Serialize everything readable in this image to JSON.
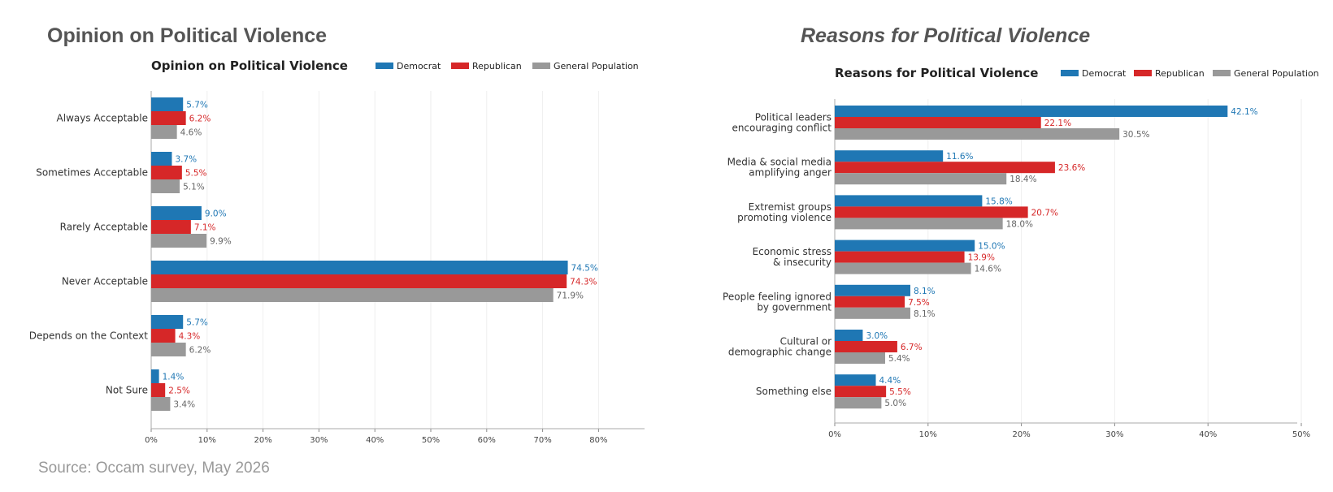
{
  "page": {
    "left_heading": "Opinion on Political Violence",
    "right_heading": "Reasons for Political Violence",
    "source": "Source: Occam survey, May 2026"
  },
  "colors": {
    "democrat": "#1f77b4",
    "republican": "#d62728",
    "general": "#999999"
  },
  "chart_data": [
    {
      "type": "bar",
      "orientation": "horizontal",
      "title": "Opinion on Political Violence",
      "categories": [
        "Always Acceptable",
        "Sometimes Acceptable",
        "Rarely Acceptable",
        "Never Acceptable",
        "Depends on the Context",
        "Not Sure"
      ],
      "series": [
        {
          "name": "Democrat",
          "color": "#1f77b4",
          "values": [
            5.7,
            3.7,
            9.0,
            74.5,
            5.7,
            1.4
          ]
        },
        {
          "name": "Republican",
          "color": "#d62728",
          "values": [
            6.2,
            5.5,
            7.1,
            74.3,
            4.3,
            2.5
          ]
        },
        {
          "name": "General Population",
          "color": "#999999",
          "values": [
            4.6,
            5.1,
            9.9,
            71.9,
            6.2,
            3.4
          ]
        }
      ],
      "xticks": [
        "0%",
        "10%",
        "20%",
        "30%",
        "40%",
        "50%",
        "60%",
        "70%",
        "80%"
      ],
      "xlim": [
        0,
        88
      ],
      "grid": true,
      "legend": "top-right"
    },
    {
      "type": "bar",
      "orientation": "horizontal",
      "title": "Reasons for Political Violence",
      "categories": [
        [
          "Political leaders",
          "encouraging conflict"
        ],
        [
          "Media & social media",
          "amplifying anger"
        ],
        [
          "Extremist groups",
          "promoting violence"
        ],
        [
          "Economic stress",
          "& insecurity"
        ],
        [
          "People feeling ignored",
          "by government"
        ],
        [
          "Cultural or",
          "demographic change"
        ],
        [
          "Something else"
        ]
      ],
      "series": [
        {
          "name": "Democrat",
          "color": "#1f77b4",
          "values": [
            42.1,
            11.6,
            15.8,
            15.0,
            8.1,
            3.0,
            4.4
          ]
        },
        {
          "name": "Republican",
          "color": "#d62728",
          "values": [
            22.1,
            23.6,
            20.7,
            13.9,
            7.5,
            6.7,
            5.5
          ]
        },
        {
          "name": "General Population",
          "color": "#999999",
          "values": [
            30.5,
            18.4,
            18.0,
            14.6,
            8.1,
            5.4,
            5.0
          ]
        }
      ],
      "xticks": [
        "0%",
        "10%",
        "20%",
        "30%",
        "40%",
        "50%"
      ],
      "xlim": [
        0,
        50.5
      ],
      "grid": true,
      "legend": "top-right"
    }
  ]
}
